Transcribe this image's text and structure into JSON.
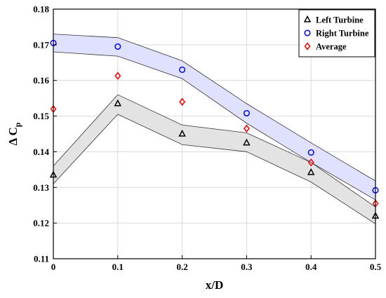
{
  "chart_data": {
    "type": "scatter",
    "xlabel": "x/D",
    "ylabel": "Δ C",
    "ylabel_subscript": "p",
    "xlim": [
      0,
      0.5
    ],
    "ylim": [
      0.11,
      0.18
    ],
    "xticks": [
      "0",
      "0.1",
      "0.2",
      "0.3",
      "0.4",
      "0.5"
    ],
    "yticks": [
      "0.11",
      "0.12",
      "0.13",
      "0.14",
      "0.15",
      "0.16",
      "0.17",
      "0.18"
    ],
    "grid": true,
    "legend_position": "top-right",
    "x": [
      0,
      0.1,
      0.2,
      0.3,
      0.4,
      0.5
    ],
    "series": [
      {
        "name": "Left Turbine",
        "marker": "triangle",
        "color": "#000000",
        "values": [
          0.1335,
          0.1535,
          0.145,
          0.1425,
          0.1342,
          0.122
        ],
        "band_upper": [
          0.136,
          0.156,
          0.1475,
          0.1453,
          0.137,
          0.1245
        ],
        "band_lower": [
          0.131,
          0.1505,
          0.142,
          0.14,
          0.1315,
          0.1198
        ],
        "band_color": "#e3e3e3"
      },
      {
        "name": "Right Turbine",
        "marker": "circle",
        "color": "#0000ff",
        "values": [
          0.1705,
          0.1695,
          0.163,
          0.1508,
          0.1398,
          0.1292
        ],
        "band_upper": [
          0.173,
          0.172,
          0.1655,
          0.1535,
          0.1425,
          0.1318
        ],
        "band_lower": [
          0.168,
          0.1668,
          0.1605,
          0.148,
          0.137,
          0.1265
        ],
        "band_color": "#e0e0ff"
      },
      {
        "name": "Average",
        "marker": "diamond",
        "color": "#ff0000",
        "values": [
          0.152,
          0.1613,
          0.154,
          0.1465,
          0.137,
          0.1255
        ]
      }
    ]
  }
}
